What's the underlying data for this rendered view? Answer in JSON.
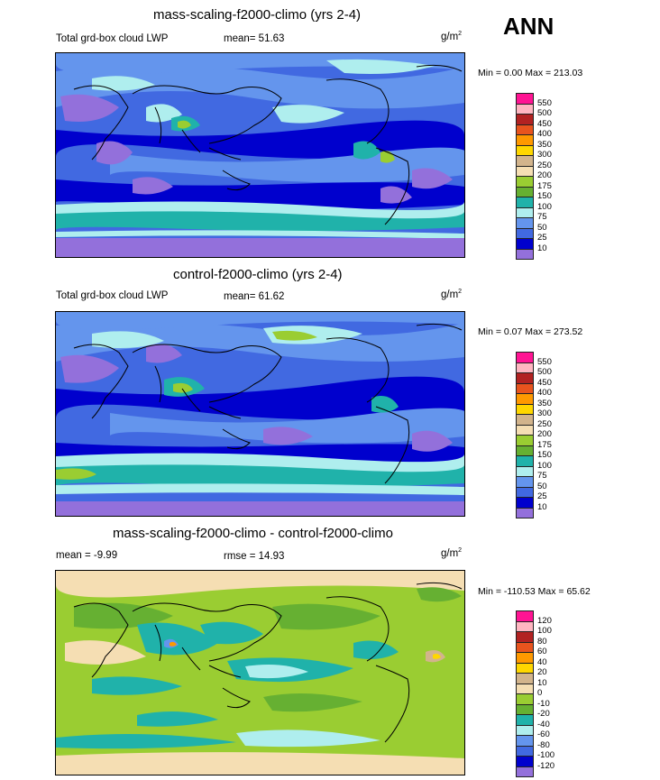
{
  "season": "ANN",
  "units_base": "g/m",
  "units_exp": "2",
  "panels": [
    {
      "title": "mass-scaling-f2000-climo (yrs 2-4)",
      "left_label": "Total grd-box cloud LWP",
      "stat_label": "mean=  51.63",
      "minmax": "Min =   0.00 Max = 213.03",
      "colorbar": {
        "labels": [
          "550",
          "500",
          "450",
          "400",
          "350",
          "300",
          "250",
          "200",
          "175",
          "150",
          "100",
          "75",
          "50",
          "25",
          "10"
        ],
        "colors": [
          "#ff1493",
          "#ffb6c1",
          "#b22222",
          "#e8541e",
          "#ff9900",
          "#ffd700",
          "#d2b48c",
          "#f5deb3",
          "#9acd32",
          "#66b032",
          "#20b2aa",
          "#afeeee",
          "#6495ed",
          "#4169e1",
          "#0000cd",
          "#9370db"
        ]
      }
    },
    {
      "title": "control-f2000-climo (yrs 2-4)",
      "left_label": "Total grd-box cloud LWP",
      "stat_label": "mean=  61.62",
      "minmax": "Min =   0.07 Max = 273.52",
      "colorbar": {
        "labels": [
          "550",
          "500",
          "450",
          "400",
          "350",
          "300",
          "250",
          "200",
          "175",
          "150",
          "100",
          "75",
          "50",
          "25",
          "10"
        ],
        "colors": [
          "#ff1493",
          "#ffb6c1",
          "#b22222",
          "#e8541e",
          "#ff9900",
          "#ffd700",
          "#d2b48c",
          "#f5deb3",
          "#9acd32",
          "#66b032",
          "#20b2aa",
          "#afeeee",
          "#6495ed",
          "#4169e1",
          "#0000cd",
          "#9370db"
        ]
      }
    },
    {
      "title": "mass-scaling-f2000-climo - control-f2000-climo",
      "left_label": "mean =  -9.99",
      "stat_label": "rmse =  14.93",
      "minmax": "Min = -110.53 Max =  65.62",
      "colorbar": {
        "labels": [
          "120",
          "100",
          "80",
          "60",
          "40",
          "20",
          "10",
          "0",
          "-10",
          "-20",
          "-40",
          "-60",
          "-80",
          "-100",
          "-120"
        ],
        "colors": [
          "#ff1493",
          "#ffb6c1",
          "#b22222",
          "#e8541e",
          "#ff9900",
          "#ffd700",
          "#d2b48c",
          "#f5deb3",
          "#9acd32",
          "#66b032",
          "#20b2aa",
          "#afeeee",
          "#6495ed",
          "#4169e1",
          "#0000cd",
          "#9370db"
        ]
      }
    }
  ]
}
